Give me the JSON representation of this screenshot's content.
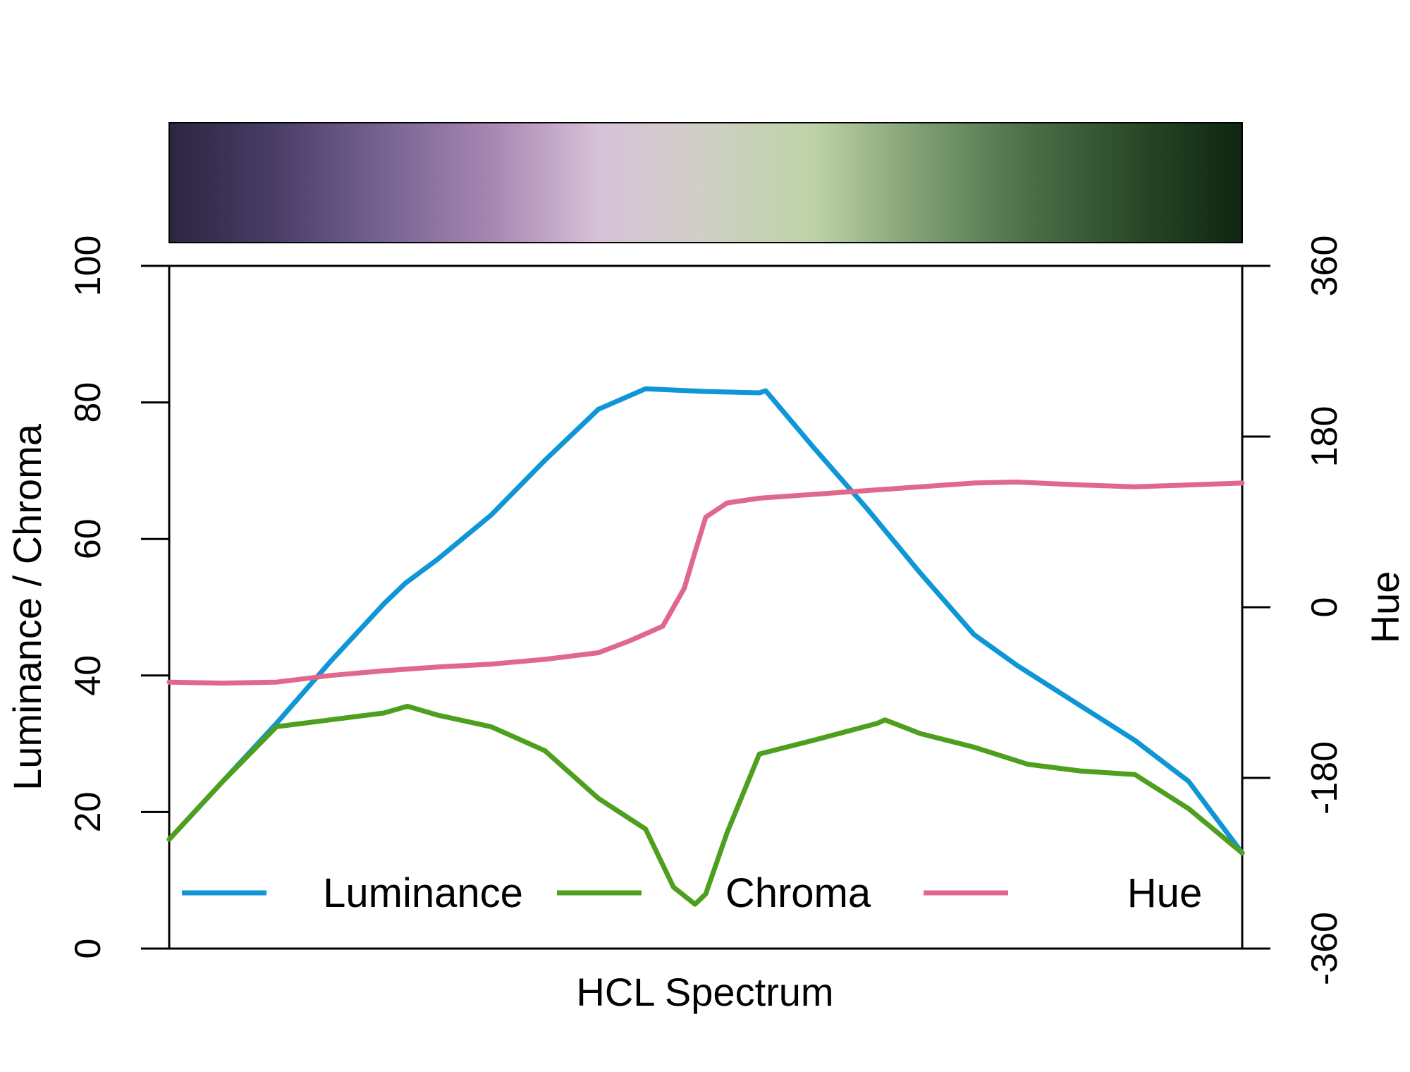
{
  "chart_data": {
    "type": "line",
    "title": "",
    "xlabel": "HCL Spectrum",
    "ylabel": "Luminance / Chroma",
    "y2label": "Hue",
    "ylim": [
      0,
      100
    ],
    "y2lim": [
      -360,
      360
    ],
    "xlim": [
      0,
      1
    ],
    "yticks": [
      "0",
      "20",
      "40",
      "60",
      "80",
      "100"
    ],
    "y2ticks": [
      "-360",
      "-180",
      "0",
      "180",
      "360"
    ],
    "legend_position": "bottom",
    "colorbar": {
      "stops": [
        "#2d2540",
        "#4a3e68",
        "#776391",
        "#a686b2",
        "#d8c2d8",
        "#cfcfc4",
        "#bed3a8",
        "#7f9e72",
        "#4c6f48",
        "#2a4928",
        "#0e2610"
      ]
    },
    "series": [
      {
        "name": "Luminance",
        "color": "#0f96d6",
        "axis": "left",
        "x": [
          0,
          0.05,
          0.1,
          0.15,
          0.2,
          0.22,
          0.25,
          0.3,
          0.35,
          0.4,
          0.444,
          0.5,
          0.55,
          0.556,
          0.6,
          0.65,
          0.7,
          0.75,
          0.79,
          0.8,
          0.85,
          0.9,
          0.95,
          1.0
        ],
        "y": [
          16,
          24.5,
          33,
          42,
          50.5,
          53.5,
          57,
          63.5,
          71.5,
          79,
          82,
          81.6,
          81.4,
          81.7,
          73.5,
          64.5,
          55,
          46,
          41.5,
          40.5,
          35.5,
          30.5,
          24.5,
          14
        ]
      },
      {
        "name": "Chroma",
        "color": "#4e9f1d",
        "axis": "left",
        "x": [
          0,
          0.05,
          0.1,
          0.15,
          0.2,
          0.222,
          0.25,
          0.3,
          0.35,
          0.4,
          0.444,
          0.47,
          0.49,
          0.5,
          0.52,
          0.55,
          0.6,
          0.66,
          0.667,
          0.7,
          0.75,
          0.8,
          0.85,
          0.9,
          0.95,
          1.0
        ],
        "y": [
          16,
          24.5,
          32.5,
          33.5,
          34.5,
          35.5,
          34.2,
          32.5,
          29,
          22,
          17.5,
          9,
          6.5,
          8,
          17,
          28.5,
          30.5,
          33,
          33.5,
          31.5,
          29.5,
          27,
          26,
          25.5,
          20.5,
          14
        ]
      },
      {
        "name": "Hue",
        "color": "#e0688c",
        "axis": "right",
        "x": [
          0,
          0.05,
          0.1,
          0.15,
          0.2,
          0.25,
          0.3,
          0.35,
          0.4,
          0.43,
          0.46,
          0.48,
          0.49,
          0.5,
          0.52,
          0.55,
          0.6,
          0.65,
          0.7,
          0.75,
          0.79,
          0.85,
          0.9,
          0.95,
          1.0
        ],
        "y": [
          -79,
          -80,
          -79,
          -72,
          -67,
          -63,
          -60,
          -55,
          -48,
          -35,
          -20,
          20,
          58,
          95,
          110,
          115,
          119,
          123,
          127,
          131,
          132,
          129,
          127,
          129,
          131
        ]
      }
    ]
  }
}
